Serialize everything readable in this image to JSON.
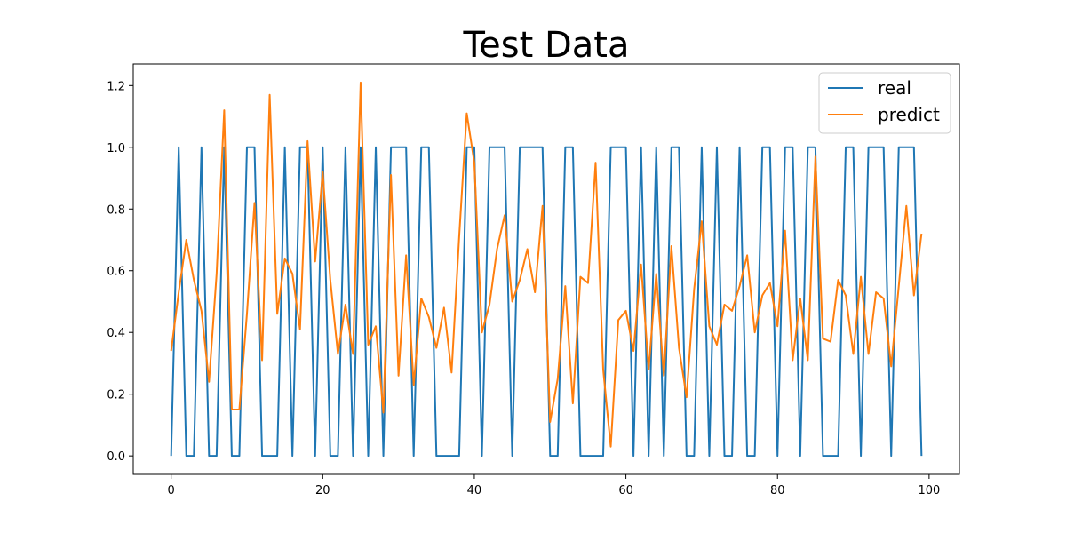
{
  "chart_data": {
    "type": "line",
    "title": "Test Data",
    "xlabel": "",
    "ylabel": "",
    "xlim": [
      -5,
      104
    ],
    "ylim": [
      -0.06,
      1.27
    ],
    "xticks": [
      0,
      20,
      40,
      60,
      80,
      100
    ],
    "xtick_labels": [
      "0",
      "20",
      "40",
      "60",
      "80",
      "100"
    ],
    "yticks": [
      0.0,
      0.2,
      0.4,
      0.6,
      0.8,
      1.0,
      1.2
    ],
    "ytick_labels": [
      "0.0",
      "0.2",
      "0.4",
      "0.6",
      "0.8",
      "1.0",
      "1.2"
    ],
    "grid": false,
    "legend": {
      "position": "top-right"
    },
    "x": [
      0,
      1,
      2,
      3,
      4,
      5,
      6,
      7,
      8,
      9,
      10,
      11,
      12,
      13,
      14,
      15,
      16,
      17,
      18,
      19,
      20,
      21,
      22,
      23,
      24,
      25,
      26,
      27,
      28,
      29,
      30,
      31,
      32,
      33,
      34,
      35,
      36,
      37,
      38,
      39,
      40,
      41,
      42,
      43,
      44,
      45,
      46,
      47,
      48,
      49,
      50,
      51,
      52,
      53,
      54,
      55,
      56,
      57,
      58,
      59,
      60,
      61,
      62,
      63,
      64,
      65,
      66,
      67,
      68,
      69,
      70,
      71,
      72,
      73,
      74,
      75,
      76,
      77,
      78,
      79,
      80,
      81,
      82,
      83,
      84,
      85,
      86,
      87,
      88,
      89,
      90,
      91,
      92,
      93,
      94,
      95,
      96,
      97,
      98,
      99
    ],
    "series": [
      {
        "name": "real",
        "color": "#1f77b4",
        "values": [
          0,
          1,
          0,
          0,
          1,
          0,
          0,
          1,
          0,
          0,
          1,
          1,
          0,
          0,
          0,
          1,
          0,
          1,
          1,
          0,
          1,
          0,
          0,
          1,
          0,
          1,
          0,
          1,
          0,
          1,
          1,
          1,
          0,
          1,
          1,
          0,
          0,
          0,
          0,
          1,
          1,
          0,
          1,
          1,
          1,
          0,
          1,
          1,
          1,
          1,
          0,
          0,
          1,
          1,
          0,
          0,
          0,
          0,
          1,
          1,
          1,
          0,
          1,
          0,
          1,
          0,
          1,
          1,
          0,
          0,
          1,
          0,
          1,
          0,
          0,
          1,
          0,
          0,
          1,
          1,
          0,
          1,
          1,
          0,
          1,
          1,
          0,
          0,
          0,
          1,
          1,
          0,
          1,
          1,
          1,
          0,
          1,
          1,
          1,
          0
        ]
      },
      {
        "name": "predict",
        "color": "#ff7f0e",
        "values": [
          0.34,
          0.53,
          0.7,
          0.57,
          0.47,
          0.24,
          0.59,
          1.12,
          0.15,
          0.15,
          0.46,
          0.82,
          0.31,
          1.17,
          0.46,
          0.64,
          0.59,
          0.41,
          1.02,
          0.63,
          0.92,
          0.57,
          0.33,
          0.49,
          0.33,
          1.21,
          0.36,
          0.42,
          0.14,
          0.91,
          0.26,
          0.65,
          0.23,
          0.51,
          0.45,
          0.35,
          0.48,
          0.27,
          0.71,
          1.11,
          0.95,
          0.4,
          0.49,
          0.67,
          0.78,
          0.5,
          0.57,
          0.67,
          0.53,
          0.81,
          0.11,
          0.25,
          0.55,
          0.17,
          0.58,
          0.56,
          0.95,
          0.28,
          0.03,
          0.44,
          0.47,
          0.34,
          0.62,
          0.28,
          0.59,
          0.26,
          0.68,
          0.35,
          0.19,
          0.54,
          0.76,
          0.42,
          0.36,
          0.49,
          0.47,
          0.55,
          0.65,
          0.4,
          0.52,
          0.56,
          0.42,
          0.73,
          0.31,
          0.51,
          0.31,
          0.97,
          0.38,
          0.37,
          0.57,
          0.52,
          0.33,
          0.58,
          0.33,
          0.53,
          0.51,
          0.29,
          0.55,
          0.81,
          0.52,
          0.72
        ]
      }
    ]
  }
}
